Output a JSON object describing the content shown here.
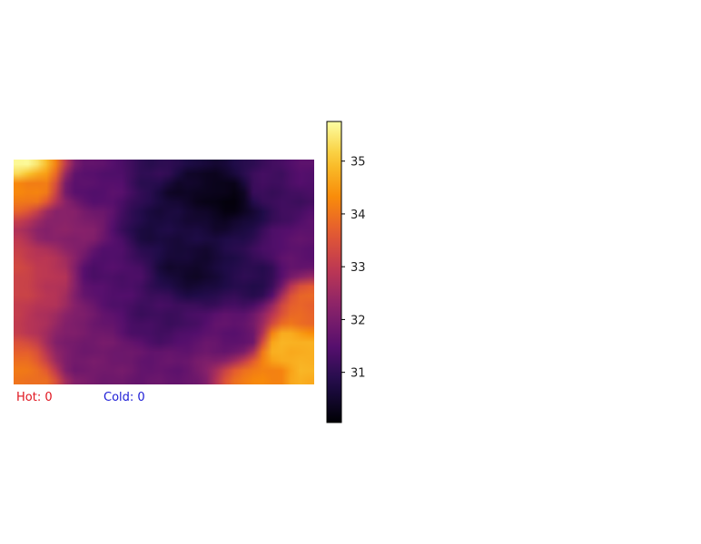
{
  "chart_data": {
    "type": "heatmap",
    "colormap": "inferno",
    "vmin": 30.05,
    "vmax": 35.75,
    "colorbar_ticks": [
      31,
      32,
      33,
      34,
      35
    ],
    "grid_rows": 24,
    "grid_cols": 32,
    "control_points": [
      {
        "c": 0.0,
        "r": 0.0,
        "v": 35.6
      },
      {
        "c": 0.02,
        "r": 0.1,
        "v": 34.2
      },
      {
        "c": 0.0,
        "r": 0.5,
        "v": 33.3
      },
      {
        "c": 0.0,
        "r": 1.0,
        "v": 34.0
      },
      {
        "c": 0.08,
        "r": 0.5,
        "v": 32.9
      },
      {
        "c": 0.15,
        "r": 0.3,
        "v": 32.2
      },
      {
        "c": 0.25,
        "r": 0.1,
        "v": 31.5
      },
      {
        "c": 0.3,
        "r": 0.5,
        "v": 31.4
      },
      {
        "c": 0.25,
        "r": 0.9,
        "v": 31.9
      },
      {
        "c": 0.5,
        "r": 0.0,
        "v": 31.0
      },
      {
        "c": 0.5,
        "r": 0.3,
        "v": 30.7
      },
      {
        "c": 0.6,
        "r": 0.5,
        "v": 30.5
      },
      {
        "c": 0.6,
        "r": 0.1,
        "v": 30.4
      },
      {
        "c": 0.72,
        "r": 0.15,
        "v": 30.2
      },
      {
        "c": 0.85,
        "r": 0.1,
        "v": 31.2
      },
      {
        "c": 1.0,
        "r": 0.0,
        "v": 31.5
      },
      {
        "c": 1.0,
        "r": 0.4,
        "v": 31.6
      },
      {
        "c": 0.8,
        "r": 0.55,
        "v": 30.9
      },
      {
        "c": 0.5,
        "r": 0.7,
        "v": 31.2
      },
      {
        "c": 0.5,
        "r": 1.0,
        "v": 31.7
      },
      {
        "c": 0.75,
        "r": 0.8,
        "v": 31.6
      },
      {
        "c": 1.0,
        "r": 0.65,
        "v": 33.8
      },
      {
        "c": 0.92,
        "r": 0.85,
        "v": 34.8
      },
      {
        "c": 0.85,
        "r": 1.0,
        "v": 34.2
      },
      {
        "c": 1.0,
        "r": 1.0,
        "v": 34.8
      }
    ]
  },
  "stats": {
    "hot_label": "Hot: 0",
    "cold_label": "Cold: 0",
    "hot_color": "#e0141e",
    "cold_color": "#1b1bd6"
  }
}
